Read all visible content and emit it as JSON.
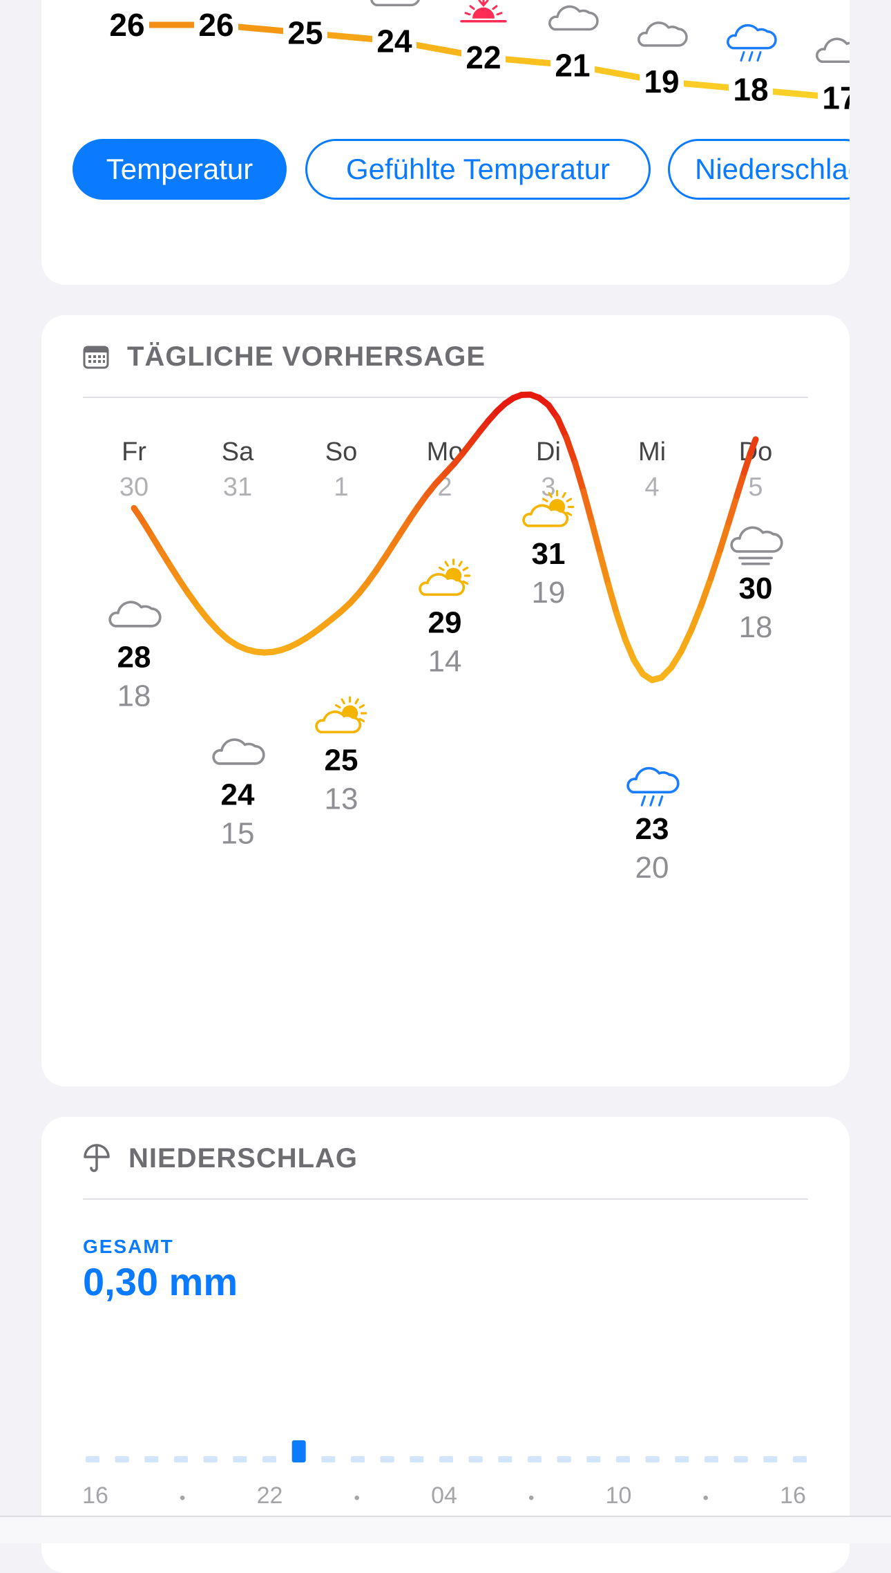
{
  "hourly": {
    "temps": [
      26,
      26,
      25,
      24,
      22,
      21,
      19,
      18,
      17
    ],
    "icons": [
      "none",
      "none",
      "cloud-icon",
      "cloud-icon",
      "sunset-icon",
      "cloud-icon",
      "cloud-icon",
      "rain-cloud-icon",
      "cloud-icon"
    ],
    "tabs": [
      {
        "label": "Temperatur",
        "active": true
      },
      {
        "label": "Gefühlte Temperatur",
        "active": false
      },
      {
        "label": "Niederschlag",
        "active": false
      }
    ]
  },
  "daily": {
    "title": "TÄGLICHE VORHERSAGE",
    "days": [
      {
        "day": "Fr",
        "date": "30",
        "high": 28,
        "low": 18,
        "icon": "cloud-icon"
      },
      {
        "day": "Sa",
        "date": "31",
        "high": 24,
        "low": 15,
        "icon": "cloud-icon"
      },
      {
        "day": "So",
        "date": "1",
        "high": 25,
        "low": 13,
        "icon": "partly-sunny-icon"
      },
      {
        "day": "Mo",
        "date": "2",
        "high": 29,
        "low": 14,
        "icon": "partly-sunny-icon"
      },
      {
        "day": "Di",
        "date": "3",
        "high": 31,
        "low": 19,
        "icon": "partly-sunny-icon"
      },
      {
        "day": "Mi",
        "date": "4",
        "high": 23,
        "low": 20,
        "icon": "rain-cloud-icon"
      },
      {
        "day": "Do",
        "date": "5",
        "high": 30,
        "low": 18,
        "icon": "fog-cloud-icon"
      }
    ]
  },
  "precip": {
    "title": "NIEDERSCHLAG",
    "total_label": "GESAMT",
    "total_value": "0,30 mm",
    "bars_count": 25,
    "active_bar_index": 7,
    "axis_labels": [
      "16",
      "•",
      "22",
      "•",
      "04",
      "•",
      "10",
      "•",
      "16"
    ]
  },
  "colors": {
    "accent": "#0a7aff",
    "cloud": "#8e8e93",
    "sun": "#f5b400",
    "sunset": "#ff2d55",
    "rain": "#1a7cff"
  }
}
